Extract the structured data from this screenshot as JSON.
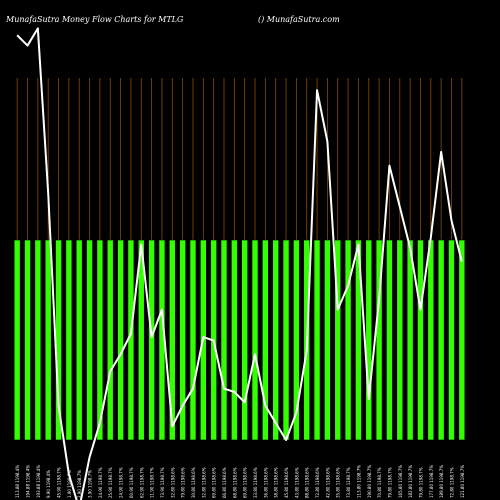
{
  "chart_data": {
    "type": "bar",
    "title": "MunafaSutra  Money Flow  Charts for MTLG",
    "watermark": "() MunafaSutra.com",
    "colors": {
      "background": "#000000",
      "grid": "#8a4b00",
      "bar_fill": "#33ff00",
      "bar_stroke": "#000000",
      "line": "#ffffff"
    },
    "ylim": [
      0,
      100
    ],
    "categories": [
      "113.88 1198.4%",
      "194.88 1198.4%",
      "193.88 1198.4%",
      "9.90 1198.4%",
      "45.90 1198.7%",
      "1.90 1198.7%",
      "2.90 1198.7%",
      "3.90 1198.7%",
      "24.90 1198.7%",
      "25.90 1198.7%",
      "24.90 1198.7%",
      "60.90 1198.7%",
      "62.90 1198.7%",
      "11.90 1198.7%",
      "73.90 1198.7%",
      "32.80 1198.6%",
      "79.80 1198.6%",
      "30.80 1198.6%",
      "32.80 1198.6%",
      "69.80 1198.6%",
      "66.80 1198.6%",
      "68.80 1198.6%",
      "69.80 1198.6%",
      "33.80 1198.6%",
      "36.80 1198.6%",
      "38.80 1198.6%",
      "45.80 1198.6%",
      "43.80 1198.6%",
      "88.80 1198.6%",
      "72.80 1198.6%",
      "42.80 1198.6%",
      "35.80 1198.6%",
      "73.80 1198.7%",
      "113.80 1198.7%",
      "190.80 1198.7%",
      "70.80 1198.7%",
      "79.80 1198.7%",
      "165.80 1198.7%",
      "182.80 1198.7%",
      "79.80 1198.7%",
      "177.80 1198.7%",
      "189.80 1198.7%",
      "72.80 1198.7%",
      "121.80 1198.7%"
    ],
    "values": [
      50,
      50,
      50,
      50,
      50,
      50,
      50,
      50,
      50,
      50,
      50,
      50,
      50,
      50,
      50,
      50,
      50,
      50,
      50,
      50,
      50,
      50,
      50,
      50,
      50,
      50,
      50,
      50,
      50,
      50,
      50,
      50,
      50,
      50,
      50,
      50,
      50,
      50,
      50,
      50,
      50,
      50,
      50,
      50
    ],
    "line_values": [
      118,
      115,
      120,
      72,
      10,
      -10,
      -20,
      -5,
      5,
      20,
      25,
      31,
      57,
      30,
      38,
      4,
      10,
      15,
      30,
      29,
      15,
      14,
      11,
      25,
      10,
      5,
      0,
      8,
      26,
      102,
      87,
      38,
      45,
      57,
      12,
      41,
      80,
      68,
      56,
      38,
      59,
      84,
      64,
      52
    ],
    "line_ylim": [
      0,
      100
    ]
  }
}
